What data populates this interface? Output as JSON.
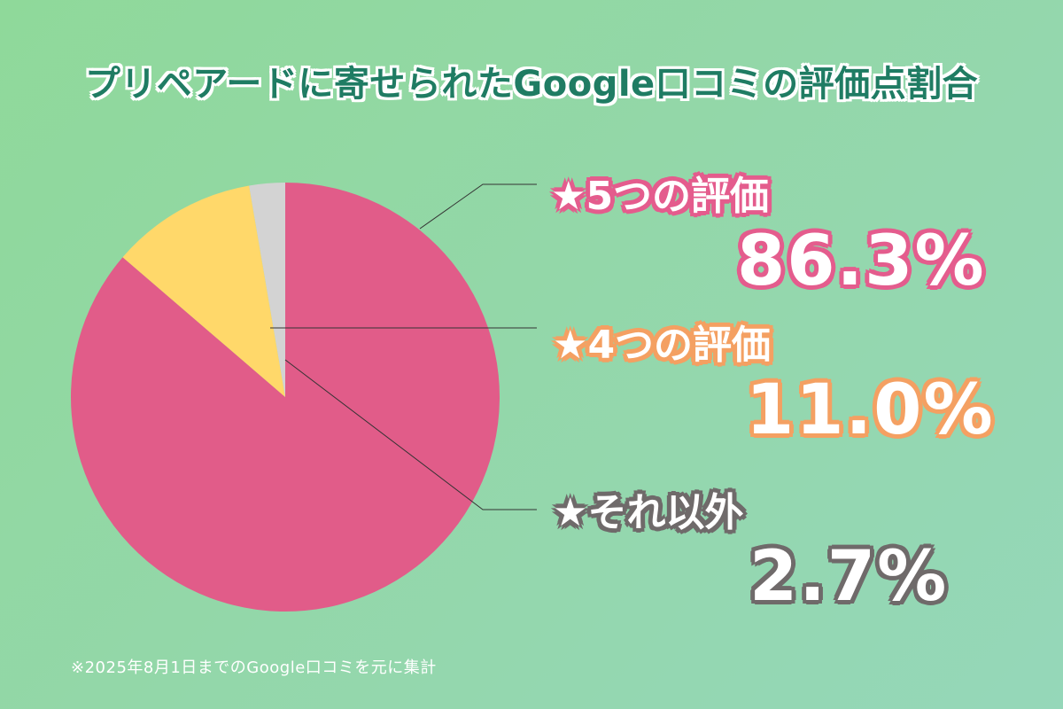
{
  "title": "プリペアードに寄せられたGoogle口コミの評価点割合",
  "footnote": "※2025年8月1日までのGoogle口コミを元に集計",
  "colors": {
    "background": "#93d7a8",
    "title": "#1f7c63",
    "five_star": "#e15c89",
    "four_star": "#ffd86a",
    "other": "#d3d3d3",
    "five_star_outline": "#e45c8d",
    "four_star_outline": "#f4a062",
    "other_outline": "#6f6a6a"
  },
  "labels": [
    {
      "category": "★5つの評価",
      "percentage": "86.3%"
    },
    {
      "category": "★4つの評価",
      "percentage": "11.0%"
    },
    {
      "category": "★それ以外",
      "percentage": "2.7%"
    }
  ],
  "chart_data": {
    "type": "pie",
    "title": "プリペアードに寄せられたGoogle口コミの評価点割合",
    "slices": [
      {
        "label": "★5つの評価",
        "value": 86.3,
        "color": "#e15c89"
      },
      {
        "label": "★4つの評価",
        "value": 11.0,
        "color": "#ffd86a"
      },
      {
        "label": "★それ以外",
        "value": 2.7,
        "color": "#d3d3d3"
      }
    ],
    "legend": "right"
  }
}
